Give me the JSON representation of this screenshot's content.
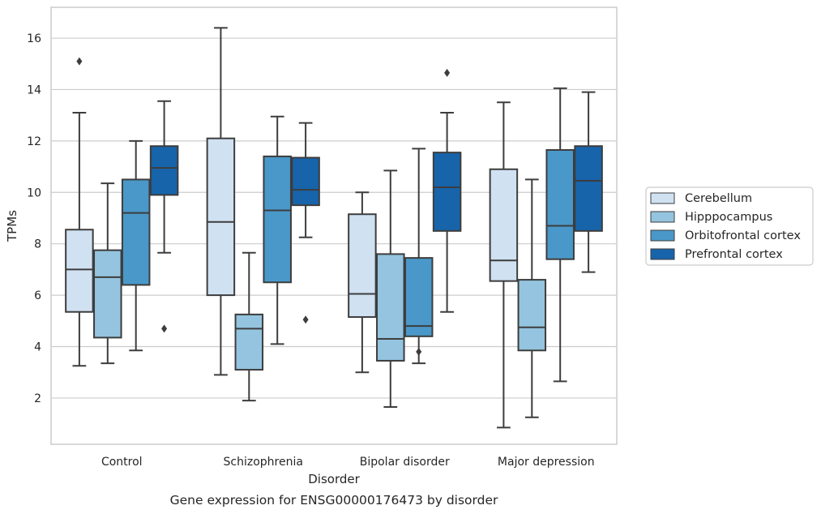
{
  "caption": "Gene expression for ENSG00000176473 by disorder",
  "chart_data": {
    "type": "boxplot",
    "xlabel": "Disorder",
    "ylabel": "TPMs",
    "ylim": [
      0.2,
      17.2
    ],
    "yticks": [
      2,
      4,
      6,
      8,
      10,
      12,
      14,
      16
    ],
    "grid": "horizontal",
    "legend_placement": "outside-right",
    "categories": [
      "Control",
      "Schizophrenia",
      "Bipolar disorder",
      "Major depression"
    ],
    "series": [
      {
        "name": "Cerebellum",
        "color": "#d0e1f2",
        "boxes": [
          {
            "whislo": 3.25,
            "q1": 5.35,
            "med": 7.0,
            "q3": 8.55,
            "whishi": 13.1,
            "fliers": [
              15.1
            ]
          },
          {
            "whislo": 2.9,
            "q1": 6.0,
            "med": 8.85,
            "q3": 12.1,
            "whishi": 16.4,
            "fliers": []
          },
          {
            "whislo": 3.0,
            "q1": 5.15,
            "med": 6.05,
            "q3": 9.15,
            "whishi": 10.0,
            "fliers": []
          },
          {
            "whislo": 0.85,
            "q1": 6.55,
            "med": 7.35,
            "q3": 10.9,
            "whishi": 13.5,
            "fliers": []
          }
        ]
      },
      {
        "name": "Hipppocampus",
        "color": "#94c4df",
        "boxes": [
          {
            "whislo": 3.35,
            "q1": 4.35,
            "med": 6.7,
            "q3": 7.75,
            "whishi": 10.35,
            "fliers": []
          },
          {
            "whislo": 1.9,
            "q1": 3.1,
            "med": 4.7,
            "q3": 5.25,
            "whishi": 7.65,
            "fliers": []
          },
          {
            "whislo": 1.65,
            "q1": 3.45,
            "med": 4.3,
            "q3": 7.6,
            "whishi": 10.85,
            "fliers": []
          },
          {
            "whislo": 1.25,
            "q1": 3.85,
            "med": 4.75,
            "q3": 6.6,
            "whishi": 10.5,
            "fliers": []
          }
        ]
      },
      {
        "name": "Orbitofrontal cortex",
        "color": "#4a98c9",
        "boxes": [
          {
            "whislo": 3.85,
            "q1": 6.4,
            "med": 9.2,
            "q3": 10.5,
            "whishi": 12.0,
            "fliers": []
          },
          {
            "whislo": 4.1,
            "q1": 6.5,
            "med": 9.3,
            "q3": 11.4,
            "whishi": 12.95,
            "fliers": []
          },
          {
            "whislo": 3.35,
            "q1": 4.4,
            "med": 4.8,
            "q3": 7.45,
            "whishi": 11.7,
            "fliers": [
              3.8
            ]
          },
          {
            "whislo": 2.65,
            "q1": 7.4,
            "med": 8.7,
            "q3": 11.65,
            "whishi": 14.05,
            "fliers": []
          }
        ]
      },
      {
        "name": "Prefrontal cortex",
        "color": "#1764ab",
        "boxes": [
          {
            "whislo": 7.65,
            "q1": 9.9,
            "med": 10.95,
            "q3": 11.8,
            "whishi": 13.55,
            "fliers": [
              4.7
            ]
          },
          {
            "whislo": 8.25,
            "q1": 9.5,
            "med": 10.1,
            "q3": 11.35,
            "whishi": 12.7,
            "fliers": [
              5.05
            ]
          },
          {
            "whislo": 5.35,
            "q1": 8.5,
            "med": 10.2,
            "q3": 11.55,
            "whishi": 13.1,
            "fliers": [
              14.65
            ]
          },
          {
            "whislo": 6.9,
            "q1": 8.5,
            "med": 10.45,
            "q3": 11.8,
            "whishi": 13.9,
            "fliers": []
          }
        ]
      }
    ]
  }
}
